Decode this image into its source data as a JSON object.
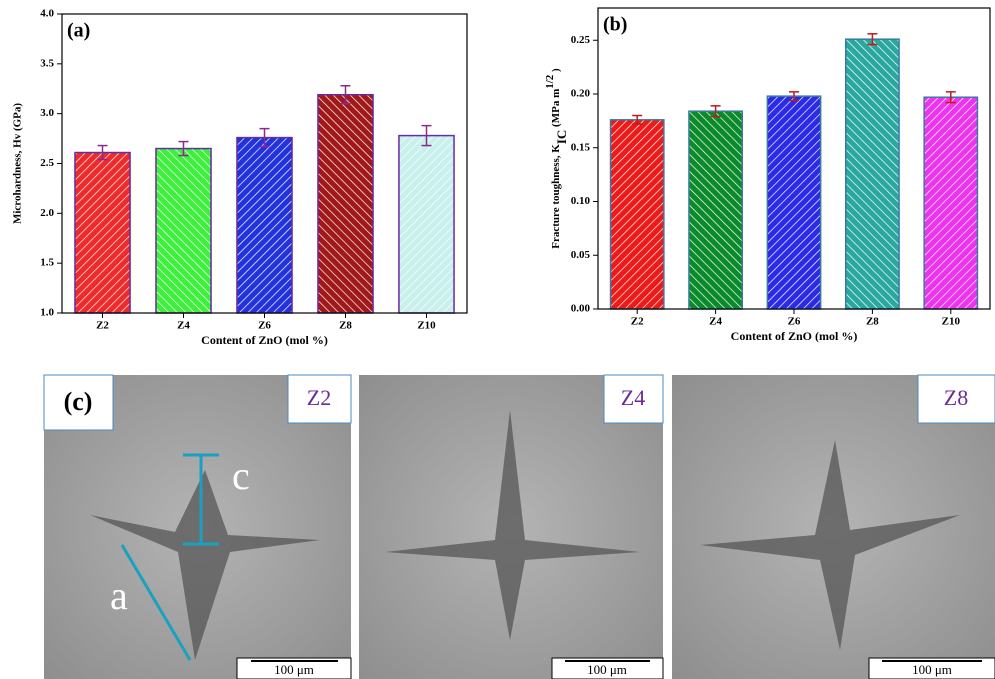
{
  "chart_data": [
    {
      "type": "bar",
      "title": "(a)",
      "categories": [
        "Z2",
        "Z4",
        "Z6",
        "Z8",
        "Z10"
      ],
      "values": [
        2.61,
        2.65,
        2.76,
        3.19,
        2.78
      ],
      "errors": [
        0.07,
        0.07,
        0.09,
        0.09,
        0.1
      ],
      "colors": [
        "#ee2a2a",
        "#3cf03c",
        "#2233dd",
        "#a01818",
        "#c8f0ec"
      ],
      "edge_color": "#6a2aa0",
      "error_color": "#8a2a8a",
      "ylim": [
        1.0,
        4.0
      ],
      "yticks": [
        {
          "value": 1,
          "label": "1.0"
        },
        {
          "value": 1.5,
          "label": "1.5"
        },
        {
          "value": 2,
          "label": "2.0"
        },
        {
          "value": 2.5,
          "label": "2.5"
        },
        {
          "value": 3,
          "label": "3.0"
        },
        {
          "value": 3.5,
          "label": "3.5"
        },
        {
          "value": 4,
          "label": "4.0"
        }
      ],
      "y_label": "Microhardness, Hv (GPa)",
      "x_label": "Content of  ZnO (mol %)"
    },
    {
      "type": "bar",
      "title": "(b)",
      "categories": [
        "Z2",
        "Z4",
        "Z6",
        "Z8",
        "Z10"
      ],
      "values": [
        0.176,
        0.184,
        0.198,
        0.251,
        0.197
      ],
      "errors": [
        0.004,
        0.005,
        0.004,
        0.005,
        0.005
      ],
      "colors": [
        "#ee1a1a",
        "#0a8a2a",
        "#2a2ae8",
        "#2aa8a0",
        "#ee33ee"
      ],
      "edge_color": "#3a7aa0",
      "error_color": "#c01a1a",
      "ylim": [
        0,
        0.28
      ],
      "yticks": [
        {
          "value": 0,
          "label": "0.00"
        },
        {
          "value": 0.05,
          "label": "0.05"
        },
        {
          "value": 0.1,
          "label": "0.10"
        },
        {
          "value": 0.15,
          "label": "0.15"
        },
        {
          "value": 0.2,
          "label": "0.20"
        },
        {
          "value": 0.25,
          "label": "0.25"
        }
      ],
      "y_label": [
        "Fracture toughness, K",
        "IC",
        " (MPa m",
        "1/2",
        " )"
      ],
      "x_label": "Content of  ZnO (mol %)"
    }
  ],
  "micrographs": {
    "panel_label": "(c)",
    "annotations": [
      "c",
      "a"
    ],
    "panels": [
      {
        "label": "Z2",
        "scale_bar": "100 μm"
      },
      {
        "label": "Z4",
        "scale_bar": "100 μm"
      },
      {
        "label": "Z8",
        "scale_bar": "100 μm"
      }
    ]
  }
}
